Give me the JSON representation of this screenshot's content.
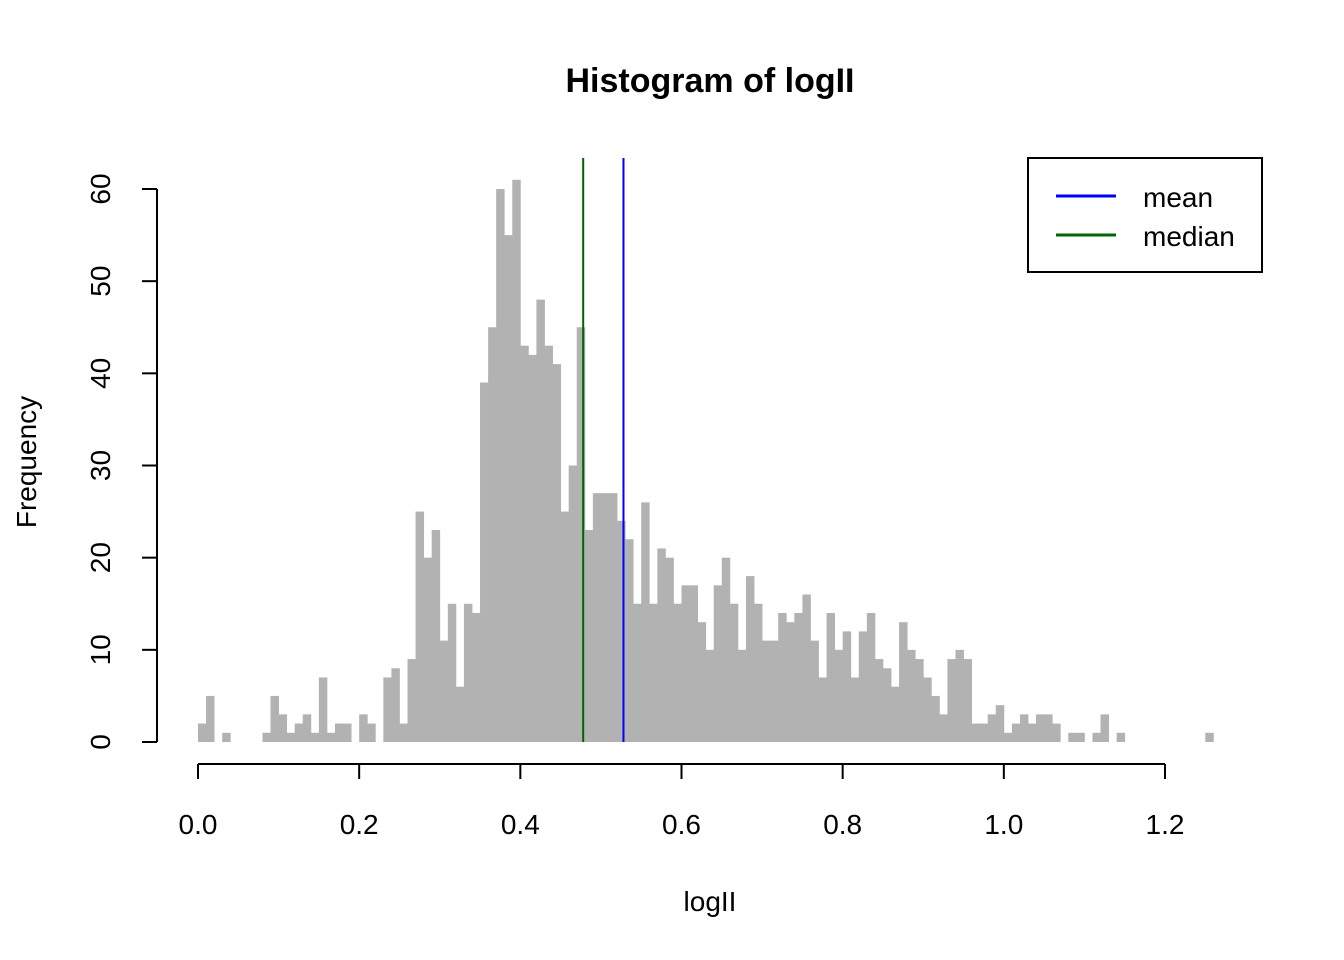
{
  "chart_data": {
    "type": "bar",
    "title": "Histogram of logII",
    "xlabel": "logII",
    "ylabel": "Frequency",
    "bin_width": 0.01,
    "x_start": 0.0,
    "values": [
      2,
      5,
      0,
      1,
      0,
      0,
      0,
      0,
      1,
      5,
      3,
      1,
      2,
      3,
      1,
      7,
      1,
      2,
      2,
      0,
      3,
      2,
      0,
      7,
      8,
      2,
      9,
      25,
      20,
      23,
      11,
      15,
      6,
      15,
      14,
      39,
      45,
      60,
      55,
      61,
      43,
      42,
      48,
      43,
      41,
      25,
      30,
      45,
      23,
      27,
      27,
      27,
      24,
      22,
      15,
      26,
      15,
      21,
      20,
      15,
      17,
      17,
      13,
      10,
      17,
      20,
      15,
      10,
      18,
      15,
      11,
      11,
      14,
      13,
      14,
      16,
      11,
      7,
      14,
      10,
      12,
      7,
      12,
      14,
      9,
      8,
      6,
      13,
      10,
      9,
      7,
      5,
      3,
      9,
      10,
      9,
      2,
      2,
      3,
      4,
      1,
      2,
      3,
      2,
      3,
      3,
      2,
      0,
      1,
      1,
      0,
      1,
      3,
      0,
      1,
      0,
      0,
      0,
      0,
      0,
      0,
      0,
      0,
      0,
      0,
      1
    ],
    "xlim": [
      0.0,
      1.2
    ],
    "xticks": [
      0.0,
      0.2,
      0.4,
      0.6,
      0.8,
      1.0,
      1.2
    ],
    "xtick_labels": [
      "0.0",
      "0.2",
      "0.4",
      "0.6",
      "0.8",
      "1.0",
      "1.2"
    ],
    "ylim": [
      0,
      60
    ],
    "yticks": [
      0,
      10,
      20,
      30,
      40,
      50,
      60
    ],
    "ytick_labels": [
      "0",
      "10",
      "20",
      "30",
      "40",
      "50",
      "60"
    ],
    "bar_color": "#b2b2b2",
    "grid": false,
    "vlines": [
      {
        "name": "mean",
        "x": 0.528,
        "color": "#0000ff"
      },
      {
        "name": "median",
        "x": 0.478,
        "color": "#006400"
      }
    ],
    "legend": {
      "position": "top-right",
      "entries": [
        {
          "label": "mean",
          "color": "#0000ff"
        },
        {
          "label": "median",
          "color": "#006400"
        }
      ]
    }
  }
}
